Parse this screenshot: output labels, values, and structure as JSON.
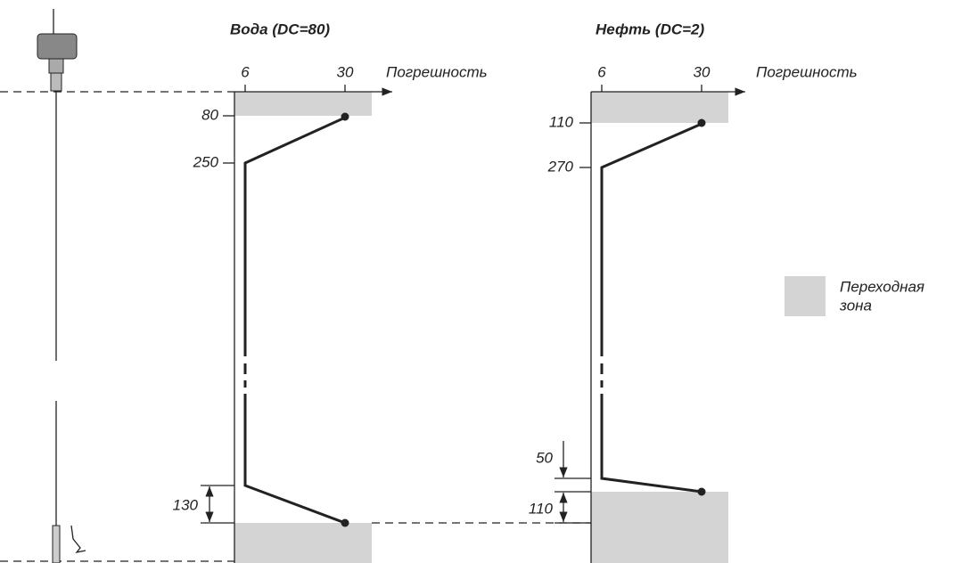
{
  "panels": [
    {
      "title": "Вода (DC=80)",
      "axis_ticks": [
        6,
        30
      ],
      "axis_label": "Погрешность",
      "depth_labels": [
        80,
        250,
        130
      ]
    },
    {
      "title": "Нефть (DC=2)",
      "axis_ticks": [
        6,
        30
      ],
      "axis_label": "Погрешность",
      "depth_labels": [
        110,
        270,
        50,
        110
      ]
    }
  ],
  "legend": {
    "lines": [
      "Переходная",
      "зона"
    ]
  }
}
